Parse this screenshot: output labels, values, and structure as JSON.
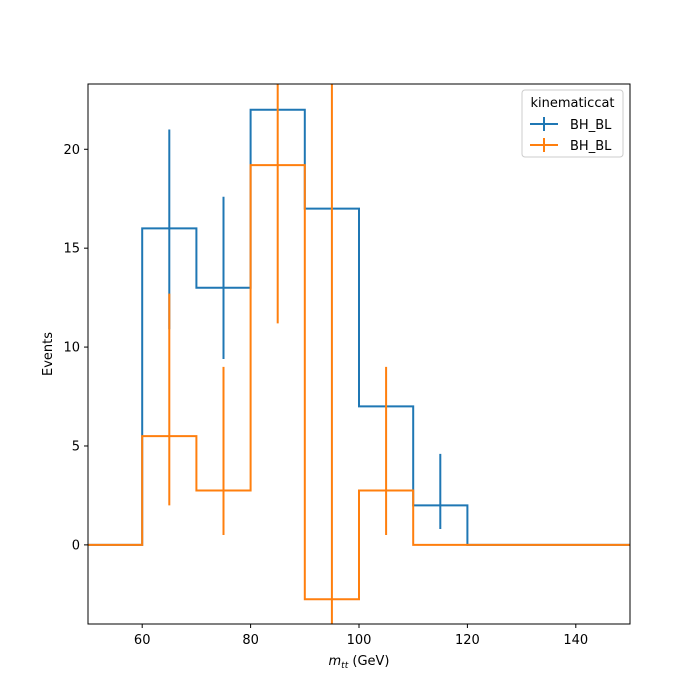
{
  "chart_data": {
    "type": "step",
    "xlabel_var": "m",
    "xlabel_sub": "tt",
    "xlabel_unit": " (GeV)",
    "ylabel": "Events",
    "xlim": [
      50,
      150
    ],
    "ylim": [
      -4,
      23.3
    ],
    "xticks": [
      60,
      80,
      100,
      120,
      140
    ],
    "yticks": [
      0,
      5,
      10,
      15,
      20
    ],
    "legend": {
      "title": "kinematiccat",
      "placement": "upper right"
    },
    "bin_edges": [
      50,
      60,
      70,
      80,
      90,
      100,
      110,
      120,
      130,
      140,
      150
    ],
    "series": [
      {
        "name": "BH_BL",
        "color": "#1f77b4",
        "values": [
          0,
          16,
          13,
          22,
          17,
          7,
          2,
          0,
          0,
          0
        ],
        "errors": [
          [
            0,
            0
          ],
          [
            10.9,
            21
          ],
          [
            9.4,
            17.6
          ],
          [
            null,
            null
          ],
          [
            null,
            null
          ],
          [
            null,
            null
          ],
          [
            0.8,
            4.6
          ],
          [
            0,
            0
          ],
          [
            0,
            0
          ],
          [
            0,
            0
          ]
        ]
      },
      {
        "name": "BH_BL",
        "color": "#ff7f0e",
        "values": [
          0,
          5.5,
          2.75,
          19.2,
          -2.75,
          2.75,
          0,
          0,
          0,
          0
        ],
        "errors": [
          [
            0,
            0
          ],
          [
            2,
            12.7
          ],
          [
            0.5,
            9
          ],
          [
            11.2,
            23.3
          ],
          [
            -4,
            23.3
          ],
          [
            0.5,
            9
          ],
          [
            0,
            0
          ],
          [
            0,
            0
          ],
          [
            0,
            0
          ],
          [
            0,
            0
          ]
        ]
      }
    ]
  }
}
